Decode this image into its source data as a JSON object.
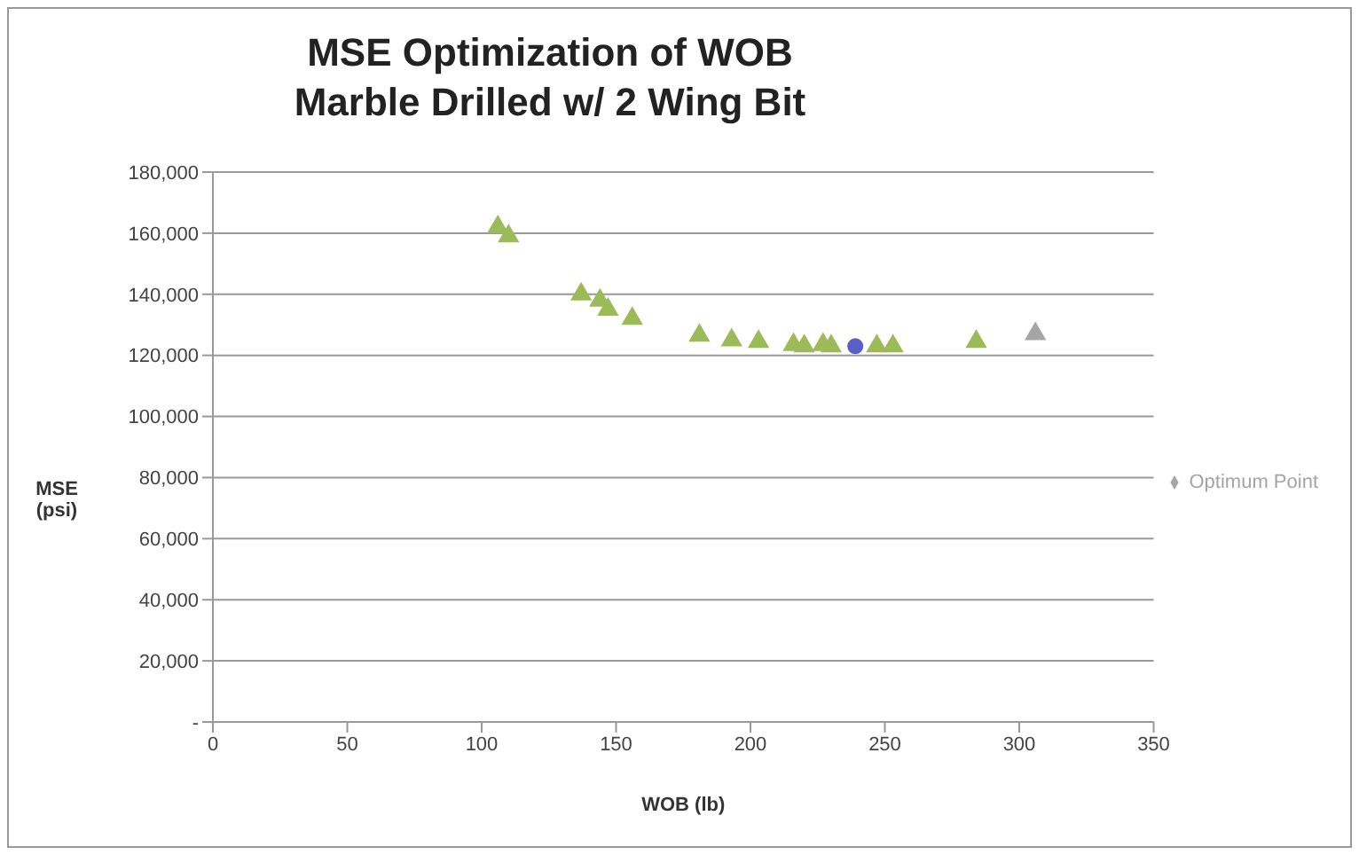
{
  "chart_data": {
    "type": "scatter",
    "title": "MSE Optimization of WOB\nMarble Drilled w/ 2 Wing Bit",
    "xlabel": "WOB (lb)",
    "ylabel": "MSE\n(psi)",
    "series": [
      {
        "color": "#9bbb59",
        "marker": "triangle",
        "x": [
          106,
          110,
          137,
          144,
          147,
          156,
          181,
          193,
          203,
          216,
          220,
          227,
          230,
          247,
          253,
          284
        ],
        "values": [
          162000,
          159000,
          140000,
          138000,
          135000,
          132000,
          126500,
          125000,
          124500,
          123500,
          123000,
          123500,
          123000,
          123000,
          123000,
          124500
        ]
      },
      {
        "color": "#5a5fc8",
        "marker": "circle",
        "x": [
          239
        ],
        "values": [
          123000
        ]
      },
      {
        "name": "Optimum Point",
        "color": "#a5a5a5",
        "marker": "triangle",
        "x": [
          306
        ],
        "values": [
          127000
        ]
      }
    ],
    "xlim": [
      0,
      350
    ],
    "xticks": [
      0,
      50,
      100,
      150,
      200,
      250,
      300,
      350
    ],
    "ylim": [
      0,
      180000
    ],
    "yticks": [
      {
        "value": 0,
        "label": "-"
      },
      {
        "value": 20000,
        "label": "20,000"
      },
      {
        "value": 40000,
        "label": "40,000"
      },
      {
        "value": 60000,
        "label": "60,000"
      },
      {
        "value": 80000,
        "label": "80,000"
      },
      {
        "value": 100000,
        "label": "100,000"
      },
      {
        "value": 120000,
        "label": "120,000"
      },
      {
        "value": 140000,
        "label": "140,000"
      },
      {
        "value": 160000,
        "label": "160,000"
      },
      {
        "value": 180000,
        "label": "180,000"
      }
    ],
    "grid": "y",
    "legend": "right"
  }
}
